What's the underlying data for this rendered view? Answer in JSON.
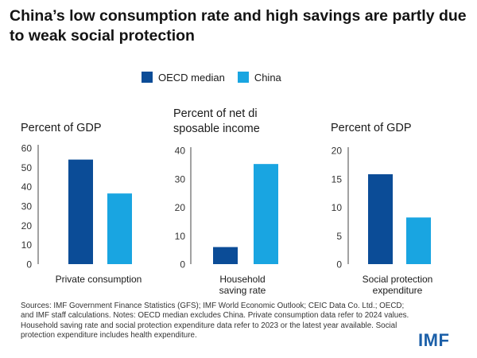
{
  "title": "China’s low consumption rate and high savings are partly due to weak social protection",
  "legend": [
    {
      "label": "OECD median",
      "color": "#0b4c97"
    },
    {
      "label": "China",
      "color": "#19a5e1"
    }
  ],
  "chart_data": [
    {
      "type": "bar",
      "unit_title": "Percent of GDP",
      "categories": [
        "Private consumption"
      ],
      "series": [
        {
          "name": "OECD median",
          "values": [
            54
          ]
        },
        {
          "name": "China",
          "values": [
            36.5
          ]
        }
      ],
      "ylim": [
        0,
        60
      ],
      "yticks": [
        0,
        10,
        20,
        30,
        40,
        50,
        60
      ]
    },
    {
      "type": "bar",
      "unit_title": "Percent of net disposable income",
      "categories": [
        "Household saving rate"
      ],
      "series": [
        {
          "name": "OECD median",
          "values": [
            6
          ]
        },
        {
          "name": "China",
          "values": [
            35.2
          ]
        }
      ],
      "ylim": [
        0,
        40
      ],
      "yticks": [
        0,
        10,
        20,
        30,
        40
      ]
    },
    {
      "type": "bar",
      "unit_title": "Percent of GDP",
      "categories": [
        "Social protection expenditure"
      ],
      "series": [
        {
          "name": "OECD median",
          "values": [
            15.8
          ]
        },
        {
          "name": "China",
          "values": [
            8.2
          ]
        }
      ],
      "ylim": [
        0,
        20
      ],
      "yticks": [
        0,
        5,
        10,
        15,
        20
      ]
    }
  ],
  "notes": "Sources: IMF Government Finance Statistics (GFS); IMF World Economic Outlook; CEIC Data Co. Ltd.; OECD; and IMF staff calculations. Notes: OECD median excludes China. Private consumption data refer to 2024 values. Household saving rate and social protection expenditure data refer to 2023 or the latest year available. Social protection expenditure includes health expenditure.",
  "logo": "IMF"
}
